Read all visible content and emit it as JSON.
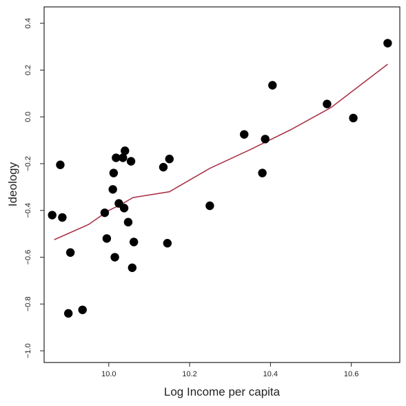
{
  "chart_data": {
    "type": "scatter",
    "title": "",
    "xlabel": "Log Income per capita",
    "ylabel": "Ideology",
    "xlim": [
      9.84,
      10.72
    ],
    "ylim": [
      -1.05,
      0.47
    ],
    "x_ticks": [
      10.0,
      10.2,
      10.4,
      10.6
    ],
    "x_tick_labels": [
      "10.0",
      "10.2",
      "10.4",
      "10.6"
    ],
    "y_ticks": [
      0.4,
      0.2,
      0.0,
      -0.2,
      -0.4,
      -0.6,
      -0.8,
      -1.0
    ],
    "y_tick_labels": [
      "0.4",
      "0.2",
      "0.0",
      "−0.2",
      "−0.4",
      "−0.6",
      "−0.8",
      "−1.0"
    ],
    "grid": false,
    "legend": "none",
    "colors": {
      "points": "#000000",
      "trend_line": "#a83248",
      "axes": "#222222"
    },
    "series": [
      {
        "kind": "points",
        "x": [
          9.86,
          9.88,
          9.885,
          9.9,
          9.905,
          9.935,
          9.99,
          9.995,
          10.01,
          10.012,
          10.015,
          10.018,
          10.025,
          10.035,
          10.038,
          10.04,
          10.048,
          10.055,
          10.058,
          10.062,
          10.135,
          10.145,
          10.15,
          10.25,
          10.335,
          10.38,
          10.387,
          10.405,
          10.54,
          10.605,
          10.69
        ],
        "y": [
          -0.42,
          -0.205,
          -0.43,
          -0.84,
          -0.58,
          -0.825,
          -0.41,
          -0.52,
          -0.31,
          -0.24,
          -0.6,
          -0.175,
          -0.37,
          -0.175,
          -0.39,
          -0.145,
          -0.45,
          -0.19,
          -0.645,
          -0.535,
          -0.215,
          -0.54,
          -0.18,
          -0.38,
          -0.075,
          -0.24,
          -0.095,
          0.135,
          0.055,
          -0.005,
          0.315
        ]
      },
      {
        "kind": "line",
        "x": [
          9.865,
          9.95,
          10.0,
          10.03,
          10.06,
          10.15,
          10.25,
          10.35,
          10.45,
          10.55,
          10.69
        ],
        "y": [
          -0.525,
          -0.46,
          -0.4,
          -0.375,
          -0.345,
          -0.32,
          -0.22,
          -0.14,
          -0.055,
          0.04,
          0.225
        ]
      }
    ]
  }
}
